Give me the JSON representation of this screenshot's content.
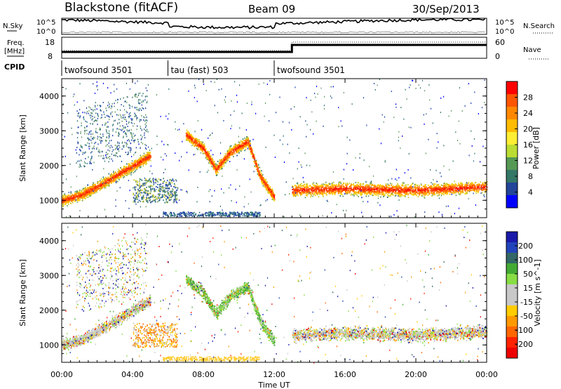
{
  "header": {
    "station": "Blackstone (fitACF)",
    "beam": "Beam 09",
    "date": "30/Sep/2013"
  },
  "strips": {
    "nsky_label": "N.Sky",
    "nsearch_label": "N.Search",
    "nsky_ticks": [
      "10^5",
      "10^0"
    ],
    "nsearch_ticks": [
      "10^5",
      "10^0"
    ],
    "freq_label_line1": "Freq.",
    "freq_label_line2": "[MHz]",
    "freq_ticks": [
      "18",
      "8"
    ],
    "nave_label": "Nave",
    "nave_ticks": [
      "60",
      "0"
    ],
    "cpid_label": "CPID"
  },
  "cpid_segments": [
    {
      "label": "twofsound 3501",
      "start_hour": 0
    },
    {
      "label": "tau (fast) 503",
      "start_hour": 6
    },
    {
      "label": "twofsound 3501",
      "start_hour": 12
    }
  ],
  "power_colorbar": {
    "title": "Power [dB]",
    "ticks": [
      "28",
      "24",
      "20",
      "16",
      "12",
      "8",
      "4"
    ],
    "colors": [
      "#ff0000",
      "#ff5500",
      "#ff8800",
      "#ffbb00",
      "#ffee33",
      "#bbdd33",
      "#559955",
      "#337766",
      "#224499",
      "#0000ff"
    ]
  },
  "velocity_colorbar": {
    "title": "Velocity [m s^-1]",
    "ticks": [
      "200",
      "100",
      "50",
      "15",
      "-15",
      "-50",
      "-100",
      "-200"
    ],
    "colors": [
      "#1a1aaa",
      "#2244bb",
      "#336666",
      "#44aa33",
      "#88dd44",
      "#c8c8c8",
      "#c8c8c8",
      "#ffcc00",
      "#ff9900",
      "#ff6600",
      "#ff2200",
      "#ee0000"
    ]
  },
  "chart_data": [
    {
      "type": "heatmap",
      "name": "power",
      "xlabel": "Time UT",
      "ylabel": "Slant Range [km]",
      "xlim": [
        0,
        24
      ],
      "ylim": [
        500,
        4500
      ],
      "x_ticks": [
        "00:00",
        "04:00",
        "08:00",
        "12:00",
        "16:00",
        "20:00",
        "00:00"
      ],
      "y_ticks": [
        "1000",
        "2000",
        "3000",
        "4000"
      ],
      "features": [
        {
          "desc": "band",
          "x": [
            0,
            1,
            2,
            3,
            4,
            5
          ],
          "range_km": [
            1000,
            1150,
            1400,
            1700,
            2000,
            2300
          ],
          "power_db": 26
        },
        {
          "desc": "band",
          "x": [
            7,
            8,
            8.7,
            9.5,
            10.5,
            11.2,
            12
          ],
          "range_km": [
            2900,
            2500,
            1900,
            2400,
            2700,
            1700,
            1100
          ],
          "power_db": 22
        },
        {
          "desc": "band",
          "x": [
            13,
            16,
            20,
            24
          ],
          "range_km": [
            1300,
            1350,
            1300,
            1400
          ],
          "power_db": 24
        }
      ]
    },
    {
      "type": "heatmap",
      "name": "velocity",
      "xlabel": "Time UT",
      "ylabel": "Slant Range [km]",
      "xlim": [
        0,
        24
      ],
      "ylim": [
        500,
        4500
      ],
      "x_ticks": [
        "00:00",
        "04:00",
        "08:00",
        "12:00",
        "16:00",
        "20:00",
        "00:00"
      ],
      "y_ticks": [
        "1000",
        "2000",
        "3000",
        "4000"
      ]
    }
  ]
}
